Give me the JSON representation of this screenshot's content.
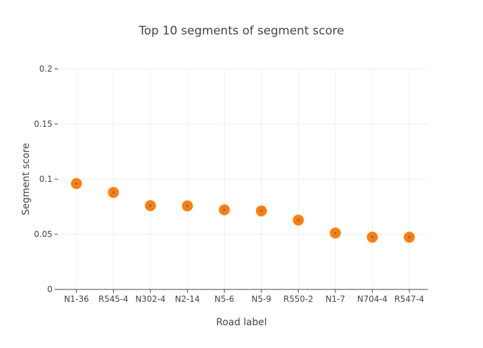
{
  "chart_data": {
    "type": "scatter",
    "title": "Top 10 segments of segment score",
    "xlabel": "Road label",
    "ylabel": "Segment score",
    "categories": [
      "N1-36",
      "R545-4",
      "N302-4",
      "N2-14",
      "N5-6",
      "N5-9",
      "R550-2",
      "N1-7",
      "N704-4",
      "R547-4"
    ],
    "values": [
      0.096,
      0.088,
      0.076,
      0.0758,
      0.0722,
      0.0712,
      0.0628,
      0.0512,
      0.0474,
      0.0474
    ],
    "ylim": [
      0,
      0.2
    ],
    "yticks": [
      "0",
      "0.05",
      "0.1",
      "0.15",
      "0.2"
    ],
    "ytick_values": [
      0,
      0.05,
      0.1,
      0.15,
      0.2
    ],
    "grid": true,
    "colors": {
      "marker_fill": "#ff7f0e",
      "marker_center": "#4a6fa5",
      "grid": "#eeeeee",
      "axis": "#444444"
    }
  }
}
